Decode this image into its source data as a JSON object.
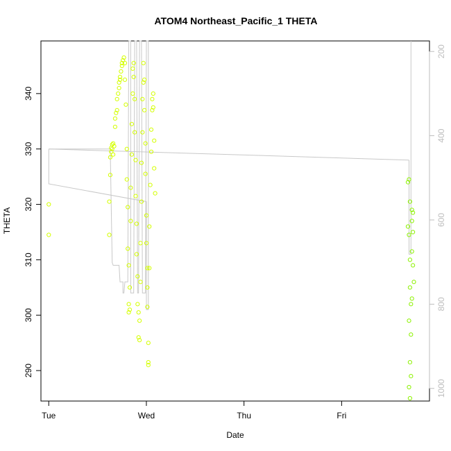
{
  "chart_data": {
    "type": "scatter",
    "title": "ATOM4 Northeast_Pacific_1 THETA",
    "xlabel": "Date",
    "ylabel": "THETA",
    "x_ticks": [
      "Tue",
      "Wed",
      "Thu",
      "Fri"
    ],
    "y_ticks": [
      290,
      300,
      310,
      320,
      330,
      340
    ],
    "y_right_ticks": [
      200,
      400,
      600,
      800,
      1000
    ],
    "xlim_days": [
      -0.08,
      3.9
    ],
    "ylim": [
      284.5,
      349.5
    ],
    "y_right_lim": [
      1030,
      175
    ],
    "y_right_reversed": true,
    "grid": false,
    "legend": "none",
    "colors": {
      "axis": "#000000",
      "right_axis": "#bdbdbd",
      "profile_line": "#c8c8c8",
      "points_early": "#d4ff00",
      "points_late": "#8cf200"
    },
    "series": [
      {
        "points": [
          [
            0.0,
            320.0
          ],
          [
            0.0,
            314.5
          ],
          [
            0.62,
            314.5
          ],
          [
            0.62,
            320.5
          ],
          [
            0.63,
            325.3
          ],
          [
            0.63,
            328.5
          ],
          [
            0.64,
            329.5
          ],
          [
            0.64,
            330.2
          ],
          [
            0.65,
            330.8
          ],
          [
            0.65,
            330.0
          ],
          [
            0.66,
            329.0
          ],
          [
            0.66,
            331.0
          ],
          [
            0.67,
            330.5
          ],
          [
            0.68,
            334.0
          ],
          [
            0.68,
            335.5
          ],
          [
            0.69,
            336.5
          ],
          [
            0.7,
            337.0
          ],
          [
            0.7,
            339.0
          ],
          [
            0.71,
            340.0
          ],
          [
            0.72,
            341.0
          ],
          [
            0.72,
            342.0
          ],
          [
            0.73,
            342.5
          ],
          [
            0.73,
            343.0
          ],
          [
            0.74,
            344.0
          ],
          [
            0.75,
            345.0
          ],
          [
            0.75,
            345.5
          ],
          [
            0.76,
            346.0
          ],
          [
            0.77,
            346.5
          ],
          [
            0.78,
            345.5
          ],
          [
            0.78,
            342.5
          ],
          [
            0.79,
            338.0
          ],
          [
            0.8,
            330.0
          ],
          [
            0.8,
            324.5
          ],
          [
            0.81,
            319.5
          ],
          [
            0.81,
            312.0
          ],
          [
            0.82,
            309.0
          ],
          [
            0.82,
            302.0
          ],
          [
            0.82,
            300.5
          ],
          [
            0.83,
            301.0
          ],
          [
            0.83,
            305.0
          ],
          [
            0.84,
            317.0
          ],
          [
            0.84,
            323.0
          ],
          [
            0.85,
            329.0
          ],
          [
            0.85,
            334.5
          ],
          [
            0.86,
            340.0
          ],
          [
            0.86,
            344.5
          ],
          [
            0.87,
            345.5
          ],
          [
            0.87,
            343.0
          ],
          [
            0.88,
            339.0
          ],
          [
            0.88,
            333.0
          ],
          [
            0.89,
            328.0
          ],
          [
            0.89,
            321.5
          ],
          [
            0.9,
            316.5
          ],
          [
            0.9,
            311.0
          ],
          [
            0.91,
            307.0
          ],
          [
            0.91,
            302.0
          ],
          [
            0.92,
            300.5
          ],
          [
            0.92,
            296.0
          ],
          [
            0.93,
            295.5
          ],
          [
            0.93,
            299.0
          ],
          [
            0.94,
            306.0
          ],
          [
            0.94,
            313.0
          ],
          [
            0.95,
            320.5
          ],
          [
            0.95,
            327.5
          ],
          [
            0.96,
            333.0
          ],
          [
            0.96,
            339.0
          ],
          [
            0.97,
            342.0
          ],
          [
            0.97,
            345.5
          ],
          [
            0.98,
            342.5
          ],
          [
            0.98,
            337.0
          ],
          [
            0.99,
            331.0
          ],
          [
            0.99,
            325.5
          ],
          [
            1.0,
            318.0
          ],
          [
            1.0,
            313.0
          ],
          [
            1.01,
            308.5
          ],
          [
            1.01,
            305.0
          ],
          [
            1.01,
            301.5
          ],
          [
            1.02,
            295.0
          ],
          [
            1.02,
            291.0
          ],
          [
            1.02,
            291.5
          ],
          [
            1.03,
            308.5
          ],
          [
            1.03,
            316.0
          ],
          [
            1.04,
            323.5
          ],
          [
            1.05,
            329.5
          ],
          [
            1.05,
            333.5
          ],
          [
            1.06,
            337.0
          ],
          [
            1.06,
            339.0
          ],
          [
            1.07,
            340.0
          ],
          [
            1.07,
            337.5
          ],
          [
            1.08,
            331.5
          ],
          [
            1.08,
            326.5
          ],
          [
            1.09,
            322.0
          ]
        ]
      },
      {
        "points": [
          [
            3.68,
            324.0
          ],
          [
            3.69,
            324.5
          ],
          [
            3.7,
            320.5
          ],
          [
            3.68,
            316.0
          ],
          [
            3.69,
            314.5
          ],
          [
            3.7,
            310.0
          ],
          [
            3.7,
            305.0
          ],
          [
            3.71,
            302.0
          ],
          [
            3.69,
            299.0
          ],
          [
            3.71,
            296.5
          ],
          [
            3.7,
            291.5
          ],
          [
            3.71,
            289.0
          ],
          [
            3.69,
            287.0
          ],
          [
            3.7,
            285.0
          ],
          [
            3.72,
            319.0
          ],
          [
            3.73,
            318.5
          ],
          [
            3.72,
            317.0
          ],
          [
            3.73,
            315.0
          ],
          [
            3.72,
            311.5
          ],
          [
            3.73,
            309.0
          ],
          [
            3.74,
            306.0
          ],
          [
            3.72,
            303.0
          ]
        ]
      }
    ],
    "profile_line": {
      "points": [
        [
          0.0,
          330.0
        ],
        [
          0.0,
          323.7
        ],
        [
          1.0,
          320.5
        ],
        [
          1.0,
          301.0
        ],
        [
          1.02,
          301.0
        ],
        [
          1.02,
          349.5
        ],
        [
          1.0,
          349.5
        ],
        [
          0.99,
          304.0
        ],
        [
          0.96,
          304.0
        ],
        [
          0.95,
          349.5
        ],
        [
          0.93,
          349.5
        ],
        [
          0.92,
          304.0
        ],
        [
          0.91,
          304.0
        ],
        [
          0.9,
          349.5
        ],
        [
          0.88,
          349.5
        ],
        [
          0.87,
          304.0
        ],
        [
          0.84,
          304.0
        ],
        [
          0.84,
          349.5
        ],
        [
          0.82,
          349.5
        ],
        [
          0.81,
          306.0
        ],
        [
          0.78,
          306.0
        ],
        [
          0.77,
          304.0
        ],
        [
          0.76,
          304.0
        ],
        [
          0.76,
          306.0
        ],
        [
          0.73,
          306.0
        ],
        [
          0.72,
          309.0
        ],
        [
          0.66,
          309.0
        ],
        [
          0.65,
          309.5
        ],
        [
          0.63,
          330.0
        ],
        [
          0.62,
          330.0
        ],
        [
          0.0,
          330.0
        ]
      ],
      "segments": [
        [
          [
            0.0,
            330.0
          ],
          [
            3.69,
            328.0
          ]
        ],
        [
          [
            3.69,
            328.0
          ],
          [
            3.69,
            311.0
          ],
          [
            3.71,
            311.0
          ],
          [
            3.71,
            349.5
          ]
        ]
      ]
    }
  }
}
